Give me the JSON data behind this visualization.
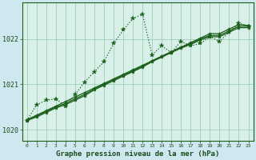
{
  "title": "Graphe pression niveau de la mer (hPa)",
  "bg_color": "#cfe8f0",
  "plot_bg_color": "#d8f0e8",
  "line_color": "#1a5e1a",
  "grid_color": "#90c8b0",
  "tick_color": "#1a4a1a",
  "ylim": [
    1019.75,
    1022.8
  ],
  "xlim": [
    -0.5,
    23.5
  ],
  "yticks": [
    1020,
    1021,
    1022
  ],
  "xticks": [
    0,
    1,
    2,
    3,
    4,
    5,
    6,
    7,
    8,
    9,
    10,
    11,
    12,
    13,
    14,
    15,
    16,
    17,
    18,
    19,
    20,
    21,
    22,
    23
  ],
  "dotted_series": [
    1020.2,
    1020.55,
    1020.65,
    1020.68,
    1020.52,
    1020.78,
    1021.05,
    1021.28,
    1021.5,
    1021.9,
    1022.2,
    1022.45,
    1022.55,
    1021.65,
    1021.85,
    1021.7,
    1021.95,
    1021.85,
    1021.9,
    1022.05,
    1021.95,
    1022.15,
    1022.35,
    1022.28
  ],
  "trend_lines": [
    [
      1020.22,
      1020.32,
      1020.42,
      1020.52,
      1020.62,
      1020.72,
      1020.82,
      1020.92,
      1021.02,
      1021.12,
      1021.22,
      1021.32,
      1021.42,
      1021.52,
      1021.62,
      1021.72,
      1021.82,
      1021.92,
      1022.02,
      1022.12,
      1022.12,
      1022.22,
      1022.32,
      1022.3
    ],
    [
      1020.22,
      1020.3,
      1020.4,
      1020.5,
      1020.58,
      1020.68,
      1020.78,
      1020.9,
      1021.0,
      1021.1,
      1021.2,
      1021.3,
      1021.4,
      1021.52,
      1021.62,
      1021.72,
      1021.82,
      1021.9,
      1022.0,
      1022.08,
      1022.08,
      1022.18,
      1022.28,
      1022.28
    ],
    [
      1020.2,
      1020.28,
      1020.38,
      1020.48,
      1020.55,
      1020.65,
      1020.75,
      1020.88,
      1020.98,
      1021.08,
      1021.18,
      1021.28,
      1021.38,
      1021.5,
      1021.6,
      1021.7,
      1021.8,
      1021.88,
      1021.98,
      1022.05,
      1022.05,
      1022.15,
      1022.25,
      1022.25
    ]
  ],
  "markersize": 3.5,
  "linewidth": 0.9
}
